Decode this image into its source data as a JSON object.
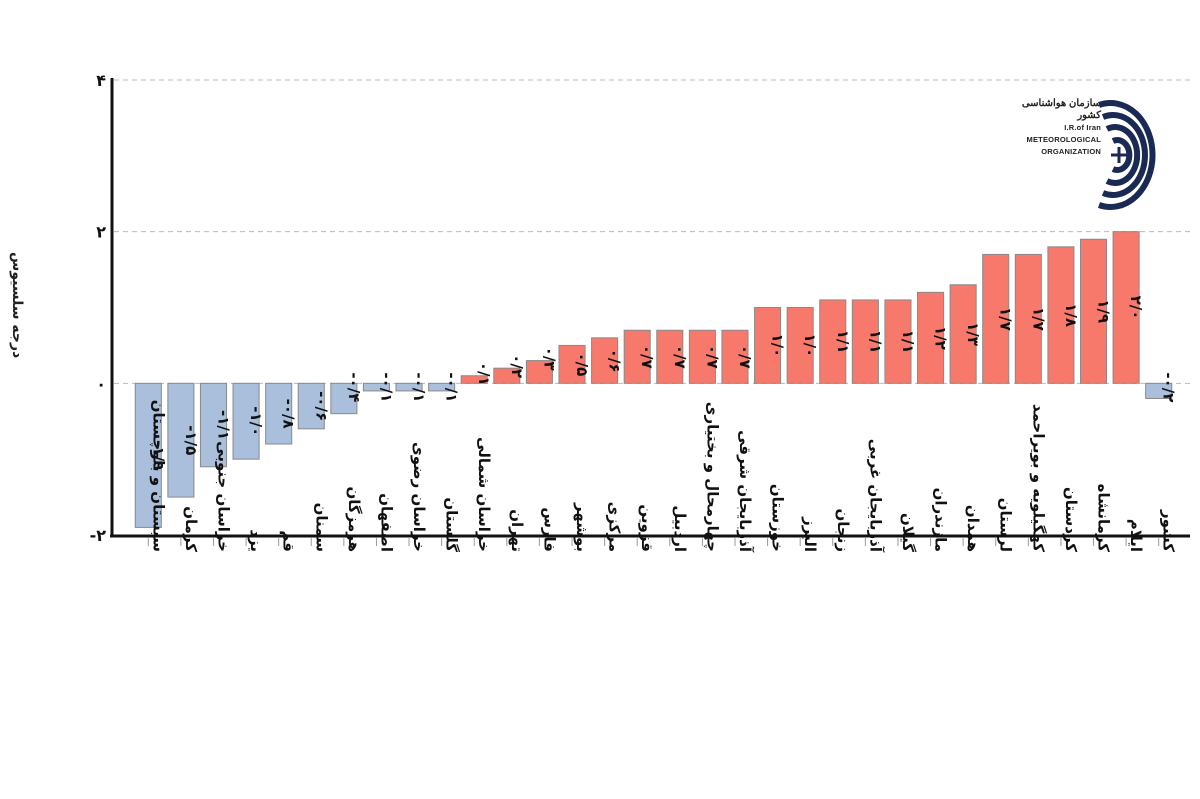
{
  "chart_data": {
    "type": "bar",
    "title": "",
    "xlabel": "",
    "ylabel": "درجه سلسیوس",
    "ylim": [
      -2,
      4
    ],
    "yticks": [
      {
        "value": -2,
        "label": "-۲"
      },
      {
        "value": 0,
        "label": "۰"
      },
      {
        "value": 2,
        "label": "۲"
      },
      {
        "value": 4,
        "label": "۴"
      }
    ],
    "grid": "horizontal-dashed",
    "colors": {
      "positive": "#f7796b",
      "negative": "#a9bfdc",
      "bar_edge": "#8a8a8a"
    },
    "categories": [
      "سیستان و بلوچستان",
      "کرمان",
      "خراسان جنوبی",
      "یزد",
      "قم",
      "سمنان",
      "هرمزگان",
      "اصفهان",
      "خراسان رضوی",
      "گلستان",
      "خراسان شمالی",
      "تهران",
      "فارس",
      "بوشهر",
      "مرکزی",
      "قزوین",
      "اردبیل",
      "چهارمحال و بختیاری",
      "آذربایجان شرقی",
      "خوزستان",
      "البرز",
      "زنجان",
      "آذربایجان غربی",
      "گیلان",
      "مازندران",
      "همدان",
      "لرستان",
      "کهگیلویه و بویراحمد",
      "کردستان",
      "کرمانشاه",
      "ایلام",
      "کشور"
    ],
    "values": [
      -1.9,
      -1.5,
      -1.1,
      -1.0,
      -0.8,
      -0.6,
      -0.4,
      -0.1,
      -0.1,
      -0.1,
      0.1,
      0.2,
      0.3,
      0.5,
      0.6,
      0.7,
      0.7,
      0.7,
      0.7,
      1.0,
      1.0,
      1.1,
      1.1,
      1.1,
      1.2,
      1.3,
      1.7,
      1.7,
      1.8,
      1.9,
      2.0,
      -0.2
    ],
    "data_labels": [
      "-۱/۹",
      "-۱/۵",
      "-۱/۱",
      "-۱/۰",
      "-۰/۸",
      "-۰/۶",
      "-۰/۴",
      "-۰/۱",
      "-۰/۱",
      "-۰/۱",
      "۰/۱",
      "۰/۲",
      "۰/۳",
      "۰/۵",
      "۰/۶",
      "۰/۷",
      "۰/۷",
      "۰/۷",
      "۰/۷",
      "۱/۰",
      "۱/۰",
      "۱/۱",
      "۱/۱",
      "۱/۱",
      "۱/۲",
      "۱/۳",
      "۱/۷",
      "۱/۷",
      "۱/۸",
      "۱/۹",
      "۲/۰",
      "-۰/۲"
    ]
  },
  "logo": {
    "name_fa": "سازمان هواشناسی کشور",
    "line1": "I.R.of Iran",
    "line2": "METEOROLOGICAL",
    "line3": "ORGANIZATION"
  }
}
